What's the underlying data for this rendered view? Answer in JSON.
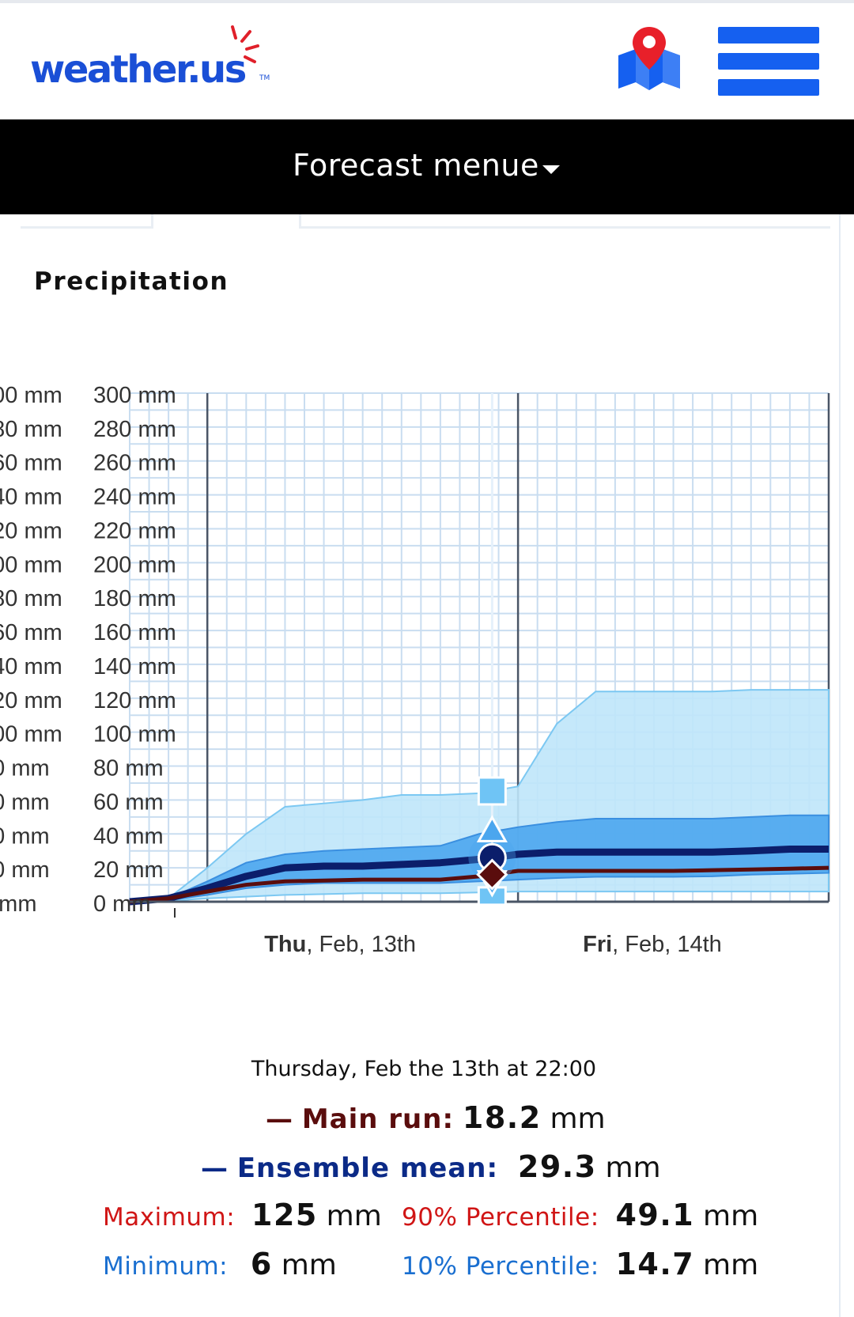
{
  "header": {
    "logo_text": "weather.us",
    "logo_tm": "TM",
    "map_icon": "map-pin-icon",
    "menu_icon": "hamburger-menu-icon",
    "brand_color": "#1560f0"
  },
  "forecast_menu": {
    "label": "Forecast menue",
    "icon": "caret-down-icon"
  },
  "section": {
    "title": "Precipitation"
  },
  "chart_data": {
    "type": "area",
    "title": "",
    "xlabel": "",
    "ylabel": "",
    "y_ticks": [
      "0 mm",
      "20 mm",
      "40 mm",
      "60 mm",
      "80 mm",
      "100 mm",
      "120 mm",
      "140 mm",
      "160 mm",
      "180 mm",
      "200 mm",
      "220 mm",
      "240 mm",
      "260 mm",
      "280 mm",
      "300 mm"
    ],
    "ylim": [
      0,
      300
    ],
    "x_day_labels": [
      {
        "bold": "Thu",
        "rest": ", Feb, 13th"
      },
      {
        "bold": "Fri",
        "rest": ", Feb, 14th"
      }
    ],
    "x_hours": [
      -6,
      -3,
      0,
      3,
      6,
      9,
      12,
      15,
      18,
      21,
      24,
      27,
      30,
      33,
      36,
      39,
      42,
      45,
      48
    ],
    "series": [
      {
        "name": "Maximum",
        "values": [
          0,
          2,
          20,
          40,
          56,
          58,
          60,
          63,
          63,
          64,
          68,
          105,
          124,
          124,
          124,
          124,
          125,
          125,
          125
        ]
      },
      {
        "name": "90% Percentile",
        "values": [
          0,
          2,
          12,
          23,
          28,
          30,
          31,
          32,
          33,
          40,
          44,
          47,
          49,
          49,
          49,
          49,
          50,
          51,
          51
        ]
      },
      {
        "name": "Ensemble mean",
        "values": [
          0,
          2,
          8,
          15,
          20,
          21,
          21,
          22,
          23,
          25,
          28,
          29.3,
          29.3,
          29.3,
          29.3,
          29.3,
          30,
          31,
          31
        ]
      },
      {
        "name": "Main run",
        "values": [
          0,
          2,
          6,
          10,
          12,
          12.5,
          13,
          13,
          13,
          15,
          18.2,
          18.2,
          18.2,
          18.2,
          18.2,
          18.6,
          19,
          19.5,
          20
        ]
      },
      {
        "name": "10% Percentile",
        "values": [
          0,
          1,
          4,
          8,
          10,
          11,
          11,
          11,
          11,
          12,
          13,
          14,
          14.7,
          14.7,
          14.7,
          15,
          16,
          16.5,
          17
        ]
      },
      {
        "name": "Minimum",
        "values": [
          0,
          0.5,
          2,
          3,
          4,
          4.5,
          5,
          5,
          5,
          5.5,
          6,
          6,
          6,
          6,
          6,
          6,
          6,
          6,
          6
        ]
      }
    ],
    "hover_hour": 22,
    "grid": true,
    "colors": {
      "max_band": "#bfe6f9",
      "pct_band": "#4ba6ee",
      "mean": "#0b1e6b",
      "main": "#5a0d0d",
      "grid": "#c9ddf0",
      "day_line": "#4a5566"
    }
  },
  "details": {
    "date_time": "Thursday, Feb the 13th at 22:00",
    "main_run": {
      "dash": "—",
      "label": "Main run:",
      "value": "18.2",
      "unit": "mm",
      "color": "#5a0d0d"
    },
    "ensemble_mean": {
      "dash": "—",
      "label": "Ensemble mean:",
      "value": "29.3",
      "unit": "mm",
      "color": "#0b2a87"
    },
    "maximum": {
      "label": "Maximum:",
      "value": "125",
      "unit": "mm",
      "color": "#d01515"
    },
    "minimum": {
      "label": "Minimum:",
      "value": "6",
      "unit": "mm",
      "color": "#1a6fd0"
    },
    "pct90": {
      "label": "90% Percentile:",
      "value": "49.1",
      "unit": "mm",
      "color": "#d01515"
    },
    "pct10": {
      "label": "10% Percentile:",
      "value": "14.7",
      "unit": "mm",
      "color": "#1a6fd0"
    }
  }
}
